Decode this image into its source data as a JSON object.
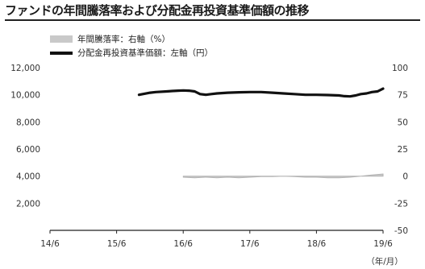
{
  "chart_data": {
    "type": "line",
    "title": "ファンドの年間騰落率および分配金再投資基準価額の推移",
    "x_unit_label": "（年/月）",
    "x_tick_labels": [
      "14/6",
      "15/6",
      "16/6",
      "17/6",
      "18/6",
      "19/6"
    ],
    "left_axis": {
      "ticks": [
        "12,000",
        "10,000",
        "8,000",
        "6,000",
        "4,000",
        "2,000"
      ],
      "ylim": [
        0,
        12000
      ]
    },
    "right_axis": {
      "ticks": [
        "100",
        "75",
        "50",
        "25",
        "0",
        "-25",
        "-50"
      ],
      "ylim": [
        -50,
        100
      ]
    },
    "grid": false,
    "legend_position": "top-left",
    "series": [
      {
        "name": "年間騰落率：右軸（%）",
        "type": "area",
        "axis": "right",
        "color": "#c9c9c9",
        "x": [
          "2016-06-30",
          "2016-08-31",
          "2016-10-31",
          "2016-12-31",
          "2017-02-28",
          "2017-04-30",
          "2017-06-30",
          "2017-08-31",
          "2017-10-31",
          "2017-12-31",
          "2018-02-28",
          "2018-04-30",
          "2018-06-30",
          "2018-08-31",
          "2018-10-31",
          "2018-12-31",
          "2019-02-28",
          "2019-04-30",
          "2019-06-30"
        ],
        "values": [
          -1,
          -1.5,
          -1,
          -1.5,
          -1,
          -1.5,
          -1,
          -0.5,
          -0.5,
          0,
          -0.5,
          -1,
          -1,
          -1.5,
          -1.5,
          -1,
          0,
          1,
          2
        ]
      },
      {
        "name": "分配金再投資基準価額：左軸（円）",
        "type": "line",
        "axis": "left",
        "color": "#111111",
        "x": [
          "2015-10-31",
          "2015-12-31",
          "2016-01-31",
          "2016-03-31",
          "2016-04-30",
          "2016-05-31",
          "2016-06-30",
          "2016-07-31",
          "2016-08-31",
          "2016-09-30",
          "2016-10-31",
          "2016-11-30",
          "2016-12-31",
          "2017-02-28",
          "2017-04-30",
          "2017-06-30",
          "2017-08-31",
          "2017-10-31",
          "2017-12-31",
          "2018-02-28",
          "2018-04-30",
          "2018-06-30",
          "2018-08-31",
          "2018-10-31",
          "2018-11-30",
          "2018-12-31",
          "2019-01-31",
          "2019-02-28",
          "2019-03-31",
          "2019-04-30",
          "2019-05-31",
          "2019-06-30"
        ],
        "values": [
          10000,
          10150,
          10200,
          10250,
          10280,
          10300,
          10320,
          10300,
          10250,
          10050,
          10000,
          10050,
          10100,
          10150,
          10180,
          10200,
          10200,
          10150,
          10100,
          10050,
          10000,
          10000,
          9980,
          9950,
          9900,
          9880,
          9950,
          10050,
          10100,
          10200,
          10250,
          10450
        ]
      }
    ]
  }
}
